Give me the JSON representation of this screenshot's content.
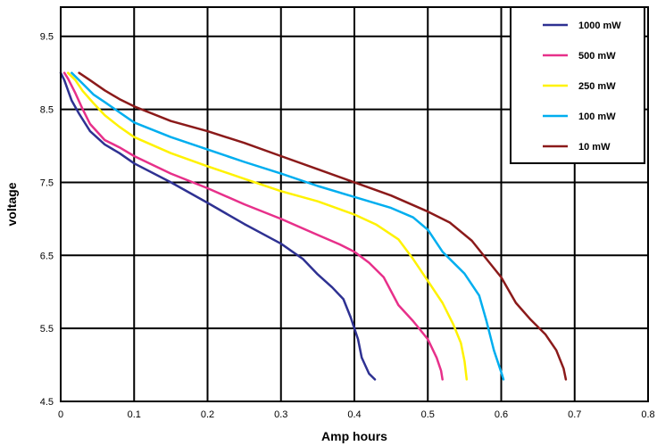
{
  "chart_data": {
    "type": "line",
    "title": "",
    "xlabel": "Amp hours",
    "ylabel": "voltage",
    "xlim": [
      0,
      0.8
    ],
    "ylim": [
      4.5,
      9.9
    ],
    "x_ticks": [
      0,
      0.1,
      0.2,
      0.3,
      0.4,
      0.5,
      0.6,
      0.7,
      0.8
    ],
    "x_tick_labels": [
      "0",
      "0.1",
      "0.2",
      "0.3",
      "0.4",
      "0.5",
      "0.6",
      "0.7",
      "0.8"
    ],
    "y_ticks": [
      4.5,
      5.5,
      6.5,
      7.5,
      8.5,
      9.5
    ],
    "y_tick_labels": [
      "4.5",
      "5.5",
      "6.5",
      "7.5",
      "8.5",
      "9.5"
    ],
    "grid": true,
    "legend_position": "top-right",
    "series": [
      {
        "name": "1000 mW",
        "color": "#2e3192",
        "points": [
          [
            0,
            9.0
          ],
          [
            0.005,
            8.9
          ],
          [
            0.015,
            8.62
          ],
          [
            0.025,
            8.44
          ],
          [
            0.04,
            8.2
          ],
          [
            0.06,
            8.02
          ],
          [
            0.08,
            7.9
          ],
          [
            0.1,
            7.76
          ],
          [
            0.15,
            7.5
          ],
          [
            0.2,
            7.22
          ],
          [
            0.25,
            6.93
          ],
          [
            0.3,
            6.66
          ],
          [
            0.33,
            6.45
          ],
          [
            0.35,
            6.24
          ],
          [
            0.37,
            6.06
          ],
          [
            0.385,
            5.9
          ],
          [
            0.395,
            5.65
          ],
          [
            0.405,
            5.35
          ],
          [
            0.41,
            5.1
          ],
          [
            0.42,
            4.88
          ],
          [
            0.428,
            4.8
          ]
        ]
      },
      {
        "name": "500 mW",
        "color": "#e7308a",
        "points": [
          [
            0.005,
            9.0
          ],
          [
            0.01,
            8.92
          ],
          [
            0.02,
            8.72
          ],
          [
            0.03,
            8.5
          ],
          [
            0.04,
            8.3
          ],
          [
            0.06,
            8.08
          ],
          [
            0.08,
            7.98
          ],
          [
            0.1,
            7.86
          ],
          [
            0.15,
            7.62
          ],
          [
            0.2,
            7.42
          ],
          [
            0.25,
            7.2
          ],
          [
            0.3,
            7.0
          ],
          [
            0.35,
            6.78
          ],
          [
            0.38,
            6.65
          ],
          [
            0.4,
            6.55
          ],
          [
            0.42,
            6.4
          ],
          [
            0.44,
            6.2
          ],
          [
            0.46,
            5.82
          ],
          [
            0.48,
            5.6
          ],
          [
            0.5,
            5.35
          ],
          [
            0.512,
            5.1
          ],
          [
            0.518,
            4.92
          ],
          [
            0.52,
            4.8
          ]
        ]
      },
      {
        "name": "250 mW",
        "color": "#fff200",
        "points": [
          [
            0.01,
            9.0
          ],
          [
            0.02,
            8.9
          ],
          [
            0.03,
            8.75
          ],
          [
            0.045,
            8.58
          ],
          [
            0.06,
            8.42
          ],
          [
            0.08,
            8.26
          ],
          [
            0.1,
            8.12
          ],
          [
            0.15,
            7.9
          ],
          [
            0.2,
            7.72
          ],
          [
            0.25,
            7.55
          ],
          [
            0.3,
            7.38
          ],
          [
            0.35,
            7.24
          ],
          [
            0.4,
            7.06
          ],
          [
            0.43,
            6.92
          ],
          [
            0.46,
            6.72
          ],
          [
            0.48,
            6.45
          ],
          [
            0.5,
            6.15
          ],
          [
            0.52,
            5.85
          ],
          [
            0.535,
            5.55
          ],
          [
            0.545,
            5.3
          ],
          [
            0.55,
            5.05
          ],
          [
            0.553,
            4.8
          ]
        ]
      },
      {
        "name": "100 mW",
        "color": "#00aeef",
        "points": [
          [
            0.015,
            9.0
          ],
          [
            0.03,
            8.85
          ],
          [
            0.045,
            8.7
          ],
          [
            0.06,
            8.6
          ],
          [
            0.08,
            8.46
          ],
          [
            0.1,
            8.32
          ],
          [
            0.15,
            8.12
          ],
          [
            0.2,
            7.95
          ],
          [
            0.25,
            7.78
          ],
          [
            0.3,
            7.62
          ],
          [
            0.35,
            7.45
          ],
          [
            0.4,
            7.3
          ],
          [
            0.45,
            7.15
          ],
          [
            0.48,
            7.02
          ],
          [
            0.5,
            6.85
          ],
          [
            0.52,
            6.55
          ],
          [
            0.55,
            6.25
          ],
          [
            0.57,
            5.95
          ],
          [
            0.58,
            5.6
          ],
          [
            0.59,
            5.2
          ],
          [
            0.6,
            4.9
          ],
          [
            0.603,
            4.8
          ]
        ]
      },
      {
        "name": "10 mW",
        "color": "#8b1a1a",
        "points": [
          [
            0.025,
            9.0
          ],
          [
            0.04,
            8.9
          ],
          [
            0.06,
            8.76
          ],
          [
            0.08,
            8.64
          ],
          [
            0.1,
            8.54
          ],
          [
            0.15,
            8.34
          ],
          [
            0.2,
            8.2
          ],
          [
            0.25,
            8.04
          ],
          [
            0.3,
            7.86
          ],
          [
            0.35,
            7.68
          ],
          [
            0.4,
            7.5
          ],
          [
            0.45,
            7.32
          ],
          [
            0.5,
            7.1
          ],
          [
            0.53,
            6.95
          ],
          [
            0.56,
            6.7
          ],
          [
            0.58,
            6.45
          ],
          [
            0.6,
            6.2
          ],
          [
            0.62,
            5.85
          ],
          [
            0.64,
            5.62
          ],
          [
            0.66,
            5.42
          ],
          [
            0.675,
            5.2
          ],
          [
            0.685,
            4.95
          ],
          [
            0.688,
            4.8
          ]
        ]
      }
    ]
  }
}
